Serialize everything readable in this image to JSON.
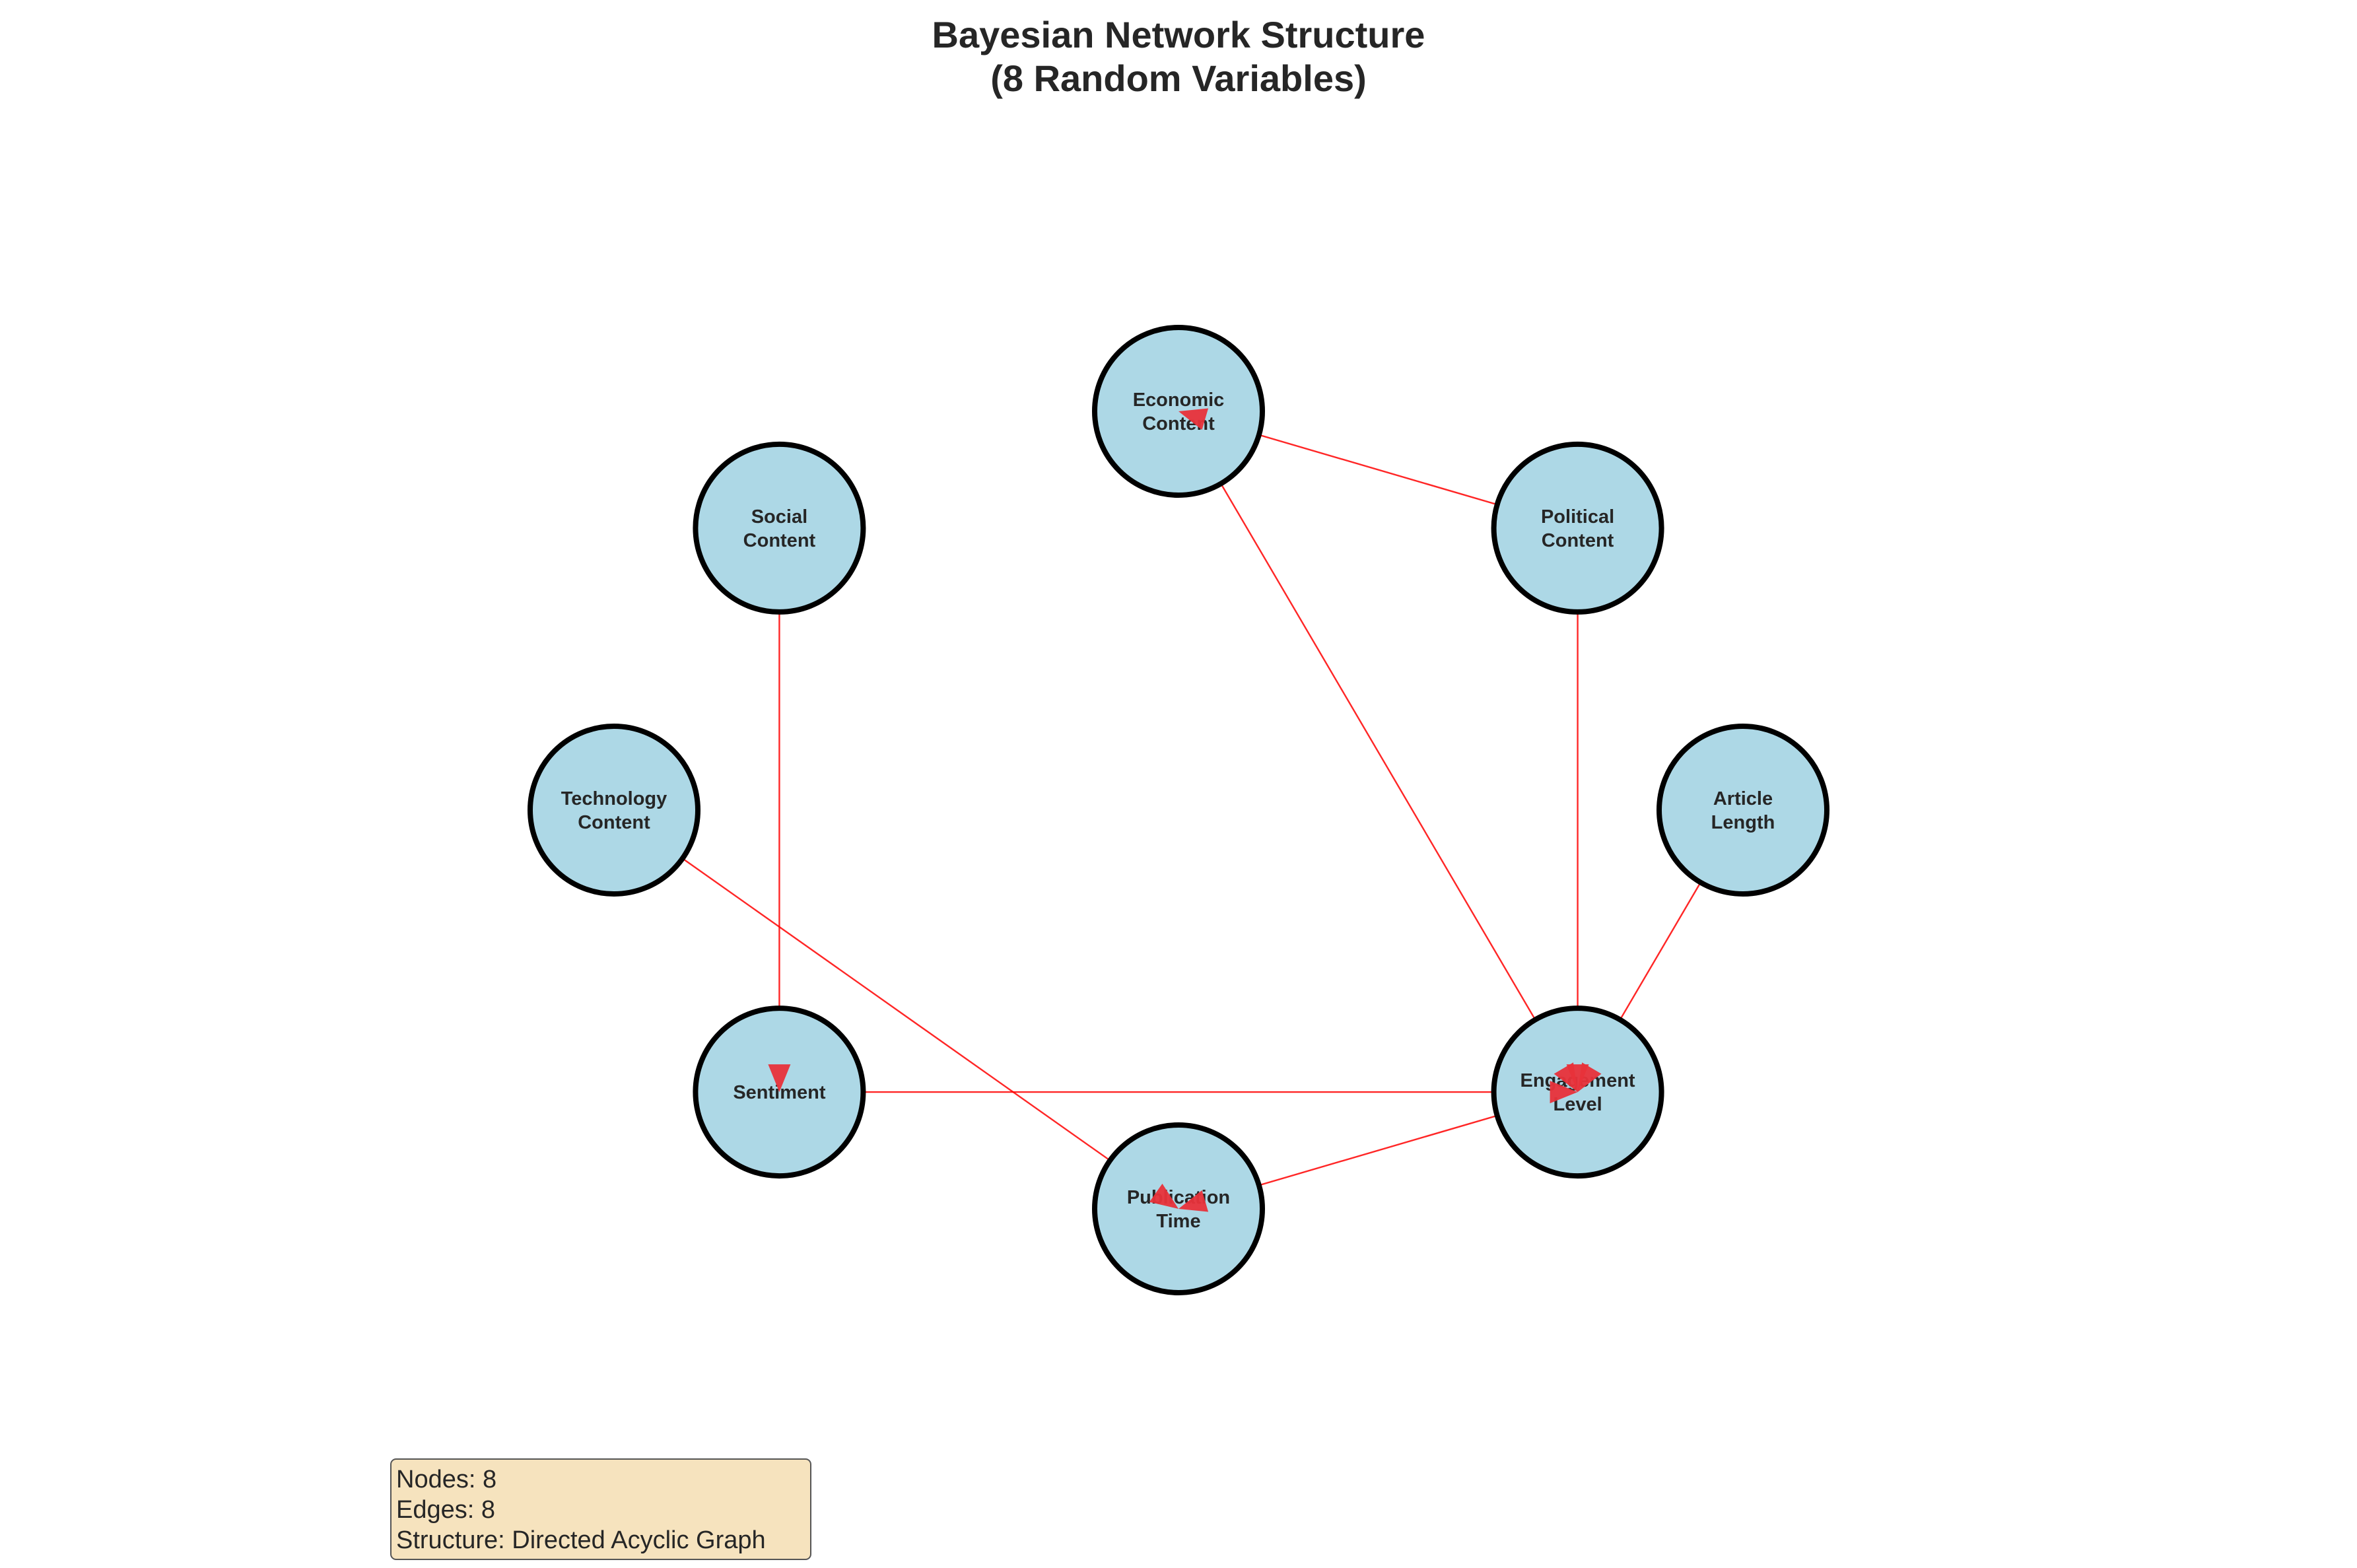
{
  "title": {
    "line1": "Bayesian Network Structure",
    "line2": "(8 Random Variables)"
  },
  "nodes": [
    {
      "id": "economic",
      "lines": [
        "Economic",
        "Content"
      ]
    },
    {
      "id": "social",
      "lines": [
        "Social",
        "Content"
      ]
    },
    {
      "id": "political",
      "lines": [
        "Political",
        "Content"
      ]
    },
    {
      "id": "technology",
      "lines": [
        "Technology",
        "Content"
      ]
    },
    {
      "id": "article_length",
      "lines": [
        "Article",
        "Length"
      ]
    },
    {
      "id": "sentiment",
      "lines": [
        "Sentiment"
      ]
    },
    {
      "id": "engagement",
      "lines": [
        "Engagement",
        "Level"
      ]
    },
    {
      "id": "publication",
      "lines": [
        "Publication",
        "Time"
      ]
    }
  ],
  "edges": [
    {
      "from": "political",
      "to": "economic"
    },
    {
      "from": "economic",
      "to": "engagement"
    },
    {
      "from": "political",
      "to": "engagement"
    },
    {
      "from": "article_length",
      "to": "engagement"
    },
    {
      "from": "sentiment",
      "to": "engagement"
    },
    {
      "from": "social",
      "to": "sentiment"
    },
    {
      "from": "technology",
      "to": "publication"
    },
    {
      "from": "engagement",
      "to": "publication"
    }
  ],
  "colors": {
    "node_fill": "#add8e6",
    "node_border": "#000000",
    "edge": "#ff0000",
    "info_box": "#f5deb3"
  },
  "info": {
    "nodes": "Nodes: 8",
    "edges": "Edges: 8",
    "structure": "Structure: Directed Acyclic Graph"
  }
}
